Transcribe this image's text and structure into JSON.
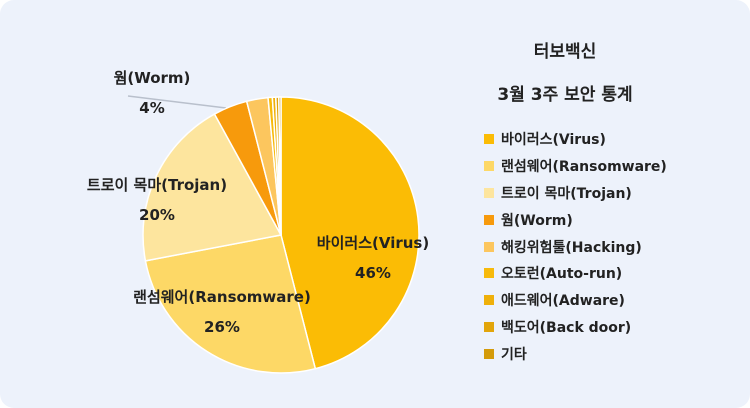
{
  "chart_data": {
    "type": "pie",
    "title": "터보백신",
    "subtitle": "3월 3주 보안 통계",
    "legend_position": "right",
    "slices": [
      {
        "name": "바이러스(Virus)",
        "value": 46,
        "color": "#fbbc05",
        "label": "46%"
      },
      {
        "name": "랜섬웨어(Ransomware)",
        "value": 26,
        "color": "#fdd866",
        "label": "26%"
      },
      {
        "name": "트로이 목마(Trojan)",
        "value": 20,
        "color": "#fde59e",
        "label": "20%"
      },
      {
        "name": "웜(Worm)",
        "value": 4,
        "color": "#f79a0c",
        "label": "4%"
      },
      {
        "name": "해킹위험툴(Hacking)",
        "value": 2.5,
        "color": "#fcc65e",
        "label": ""
      },
      {
        "name": "오토런(Auto-run)",
        "value": 0.5,
        "color": "#f7ba0b",
        "label": ""
      },
      {
        "name": "애드웨어(Adware)",
        "value": 0.4,
        "color": "#efb00a",
        "label": ""
      },
      {
        "name": "백도어(Back door)",
        "value": 0.35,
        "color": "#e2a50a",
        "label": ""
      },
      {
        "name": "기타",
        "value": 0.25,
        "color": "#d49b0a",
        "label": ""
      }
    ]
  }
}
